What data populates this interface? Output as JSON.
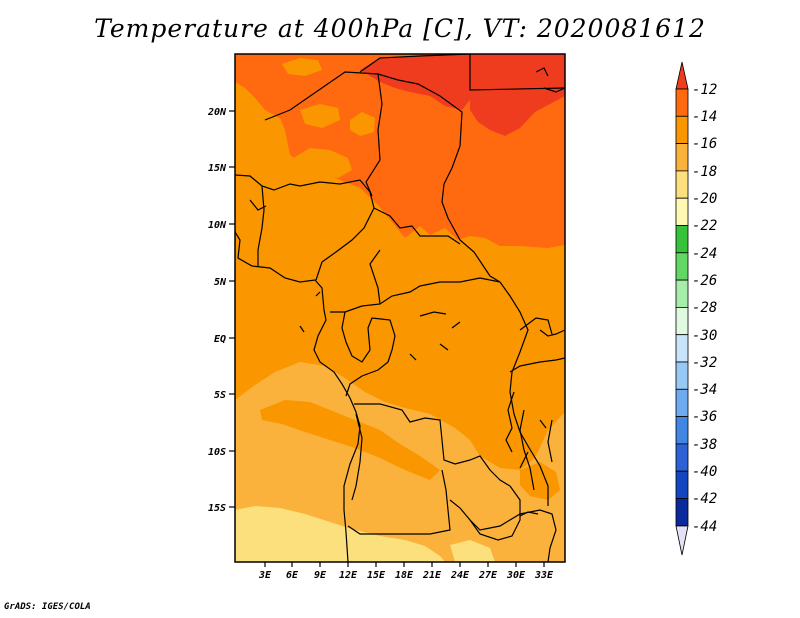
{
  "title": "Temperature at 400hPa [C], VT: 2020081612",
  "credit": "GrADS: IGES/COLA",
  "map": {
    "lat_labels": [
      "20N",
      "15N",
      "10N",
      "5N",
      "EQ",
      "5S",
      "10S",
      "15S"
    ],
    "lon_labels": [
      "3E",
      "6E",
      "9E",
      "12E",
      "15E",
      "18E",
      "21E",
      "24E",
      "27E",
      "30E",
      "33E"
    ]
  },
  "colorbar": {
    "labels": [
      "-12",
      "-14",
      "-16",
      "-18",
      "-20",
      "-22",
      "-24",
      "-26",
      "-28",
      "-30",
      "-32",
      "-34",
      "-36",
      "-38",
      "-40",
      "-42",
      "-44"
    ],
    "colors": {
      "above_-12": "#f03c1e",
      "-14_-12": "#ff6a10",
      "-16_-14": "#fa9600",
      "-18_-16": "#fbb23c",
      "-20_-18": "#fde07e",
      "-22_-20": "#fef8b4",
      "-24_-22": "#36c23a",
      "-26_-24": "#62d862",
      "-28_-26": "#a6ecaa",
      "-30_-28": "#e0fae2",
      "-32_-30": "#c8e4fa",
      "-34_-32": "#98c8f4",
      "-36_-34": "#6eaaf0",
      "-38_-36": "#4286e4",
      "-40_-38": "#2c62d6",
      "-42_-40": "#1346c0",
      "-44_-42": "#0a2a9c",
      "below_-44": "#e6e0f6"
    }
  }
}
